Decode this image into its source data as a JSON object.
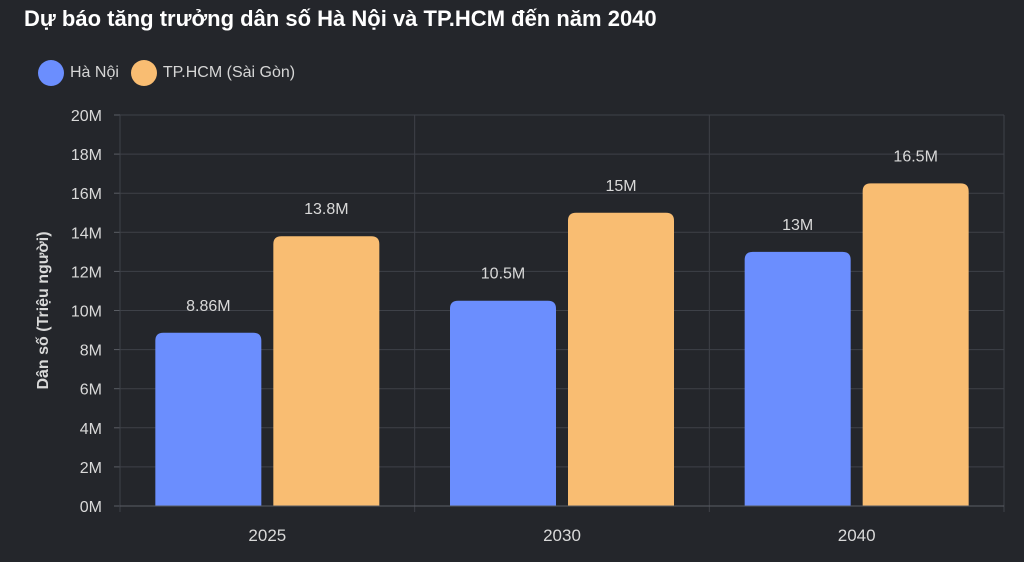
{
  "chart_data": {
    "type": "bar",
    "title": "Dự báo tăng trưởng dân số Hà Nội và TP.HCM đến năm 2040",
    "ylabel": "Dân số (Triệu người)",
    "categories": [
      "2025",
      "2030",
      "2040"
    ],
    "series": [
      {
        "name": "Hà Nội",
        "color": "#6b8efe",
        "values": [
          8.86,
          10.5,
          13
        ],
        "labels": [
          "8.86M",
          "10.5M",
          "13M"
        ]
      },
      {
        "name": "TP.HCM (Sài Gòn)",
        "color": "#f9bd72",
        "values": [
          13.8,
          15,
          16.5
        ],
        "labels": [
          "13.8M",
          "15M",
          "16.5M"
        ]
      }
    ],
    "ylim": [
      0,
      20
    ],
    "yticks": [
      {
        "value": 0,
        "label": "0M"
      },
      {
        "value": 2,
        "label": "2M"
      },
      {
        "value": 4,
        "label": "4M"
      },
      {
        "value": 6,
        "label": "6M"
      },
      {
        "value": 8,
        "label": "8M"
      },
      {
        "value": 10,
        "label": "10M"
      },
      {
        "value": 12,
        "label": "12M"
      },
      {
        "value": 14,
        "label": "14M"
      },
      {
        "value": 16,
        "label": "16M"
      },
      {
        "value": 18,
        "label": "18M"
      },
      {
        "value": 20,
        "label": "20M"
      }
    ],
    "grid": true,
    "legend_position": "top-left"
  }
}
